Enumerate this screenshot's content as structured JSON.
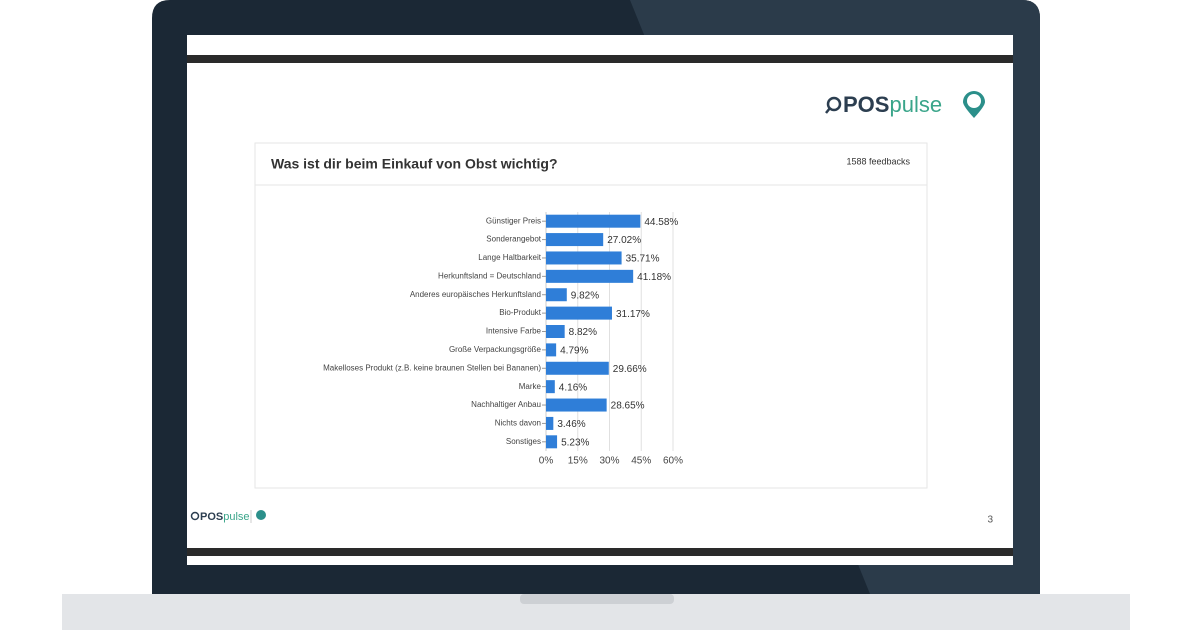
{
  "brand": {
    "main": "POS",
    "accent": "pulse"
  },
  "page_number": "3",
  "chart_data": {
    "type": "bar",
    "orientation": "horizontal",
    "title": "Was ist dir beim Einkauf von Obst wichtig?",
    "annotation": "1588 feedbacks",
    "categories": [
      "Günstiger Preis",
      "Sonderangebot",
      "Lange Haltbarkeit",
      "Herkunftsland = Deutschland",
      "Anderes europäisches Herkunftsland",
      "Bio-Produkt",
      "Intensive Farbe",
      "Große Verpackungsgröße",
      "Makelloses Produkt (z.B. keine braunen Stellen bei Bananen)",
      "Marke",
      "Nachhaltiger Anbau",
      "Nichts davon",
      "Sonstiges"
    ],
    "values": [
      44.58,
      27.02,
      35.71,
      41.18,
      9.82,
      31.17,
      8.82,
      4.79,
      29.66,
      4.16,
      28.65,
      3.46,
      5.23
    ],
    "value_labels": [
      "44.58%",
      "27.02%",
      "35.71%",
      "41.18%",
      "9.82%",
      "31.17%",
      "8.82%",
      "4.79%",
      "29.66%",
      "4.16%",
      "28.65%",
      "3.46%",
      "5.23%"
    ],
    "color": "#2f7ed8",
    "xlim": [
      0,
      60
    ],
    "xticks": [
      {
        "value": 0,
        "label": "0%"
      },
      {
        "value": 15,
        "label": "15%"
      },
      {
        "value": 30,
        "label": "30%"
      },
      {
        "value": 45,
        "label": "45%"
      },
      {
        "value": 60,
        "label": "60%"
      }
    ],
    "grid": true
  }
}
